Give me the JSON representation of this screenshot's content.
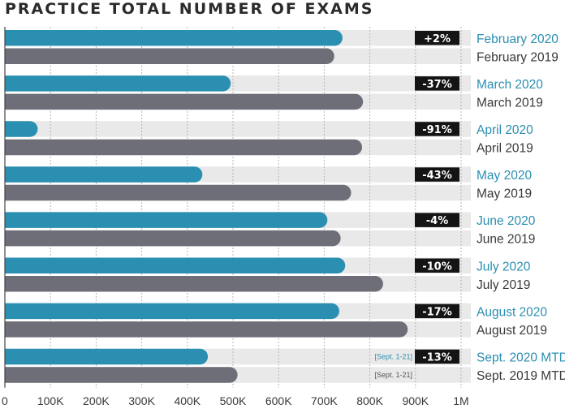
{
  "chart_data": {
    "type": "bar",
    "orientation": "horizontal",
    "title": "PRACTICE TOTAL NUMBER OF EXAMS",
    "xlim": [
      0,
      1000000
    ],
    "tick_values": [
      0,
      100000,
      200000,
      300000,
      400000,
      500000,
      600000,
      700000,
      800000,
      900000,
      1000000
    ],
    "tick_labels": [
      "0",
      "100K",
      "200K",
      "300K",
      "400K",
      "500K",
      "600K",
      "700K",
      "800K",
      "900K",
      "1M"
    ],
    "grid": true,
    "colors": {
      "year2020": "#2a8fb0",
      "year2019": "#6e6e78",
      "track": "#e9e9e9",
      "badge": "#141414",
      "grid": "#b5b5b5"
    },
    "groups": [
      {
        "label_2020": "February 2020",
        "label_2019": "February 2019",
        "value_2020": 740000,
        "value_2019": 722000,
        "change": "+2%"
      },
      {
        "label_2020": "March 2020",
        "label_2019": "March 2019",
        "value_2020": 495000,
        "value_2019": 785000,
        "change": "-37%"
      },
      {
        "label_2020": "April 2020",
        "label_2019": "April 2019",
        "value_2020": 72000,
        "value_2019": 783000,
        "change": "-91%"
      },
      {
        "label_2020": "May 2020",
        "label_2019": "May 2019",
        "value_2020": 433000,
        "value_2019": 759000,
        "change": "-43%"
      },
      {
        "label_2020": "June 2020",
        "label_2019": "June 2019",
        "value_2020": 707000,
        "value_2019": 736000,
        "change": "-4%"
      },
      {
        "label_2020": "July 2020",
        "label_2019": "July 2019",
        "value_2020": 746000,
        "value_2019": 829000,
        "change": "-10%"
      },
      {
        "label_2020": "August 2020",
        "label_2019": "August 2019",
        "value_2020": 733000,
        "value_2019": 883000,
        "change": "-17%"
      },
      {
        "label_2020": "Sept. 2020 MTD",
        "label_2019": "Sept. 2019 MTD",
        "value_2020": 445000,
        "value_2019": 510000,
        "change": "-13%",
        "note_2020": "[Sept. 1-21]",
        "note_2019": "[Sept. 1-21]"
      }
    ]
  }
}
